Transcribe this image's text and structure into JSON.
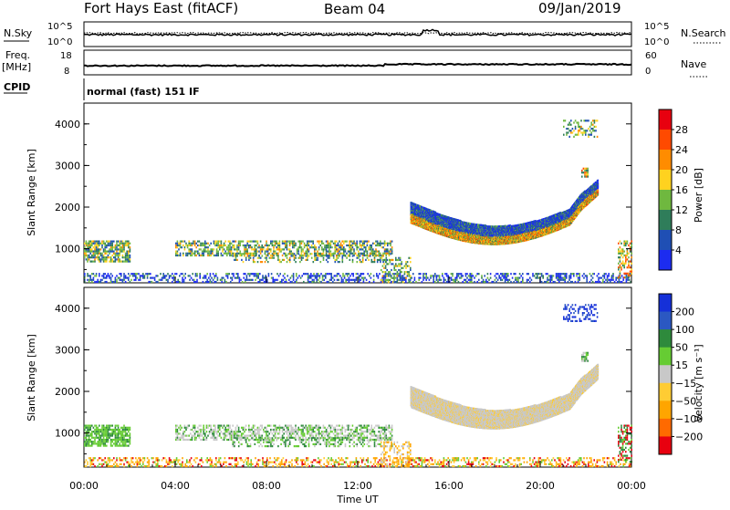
{
  "header": {
    "station": "Fort Hays East (fitACF)",
    "beam": "Beam 04",
    "date": "09/Jan/2019"
  },
  "aux_panels": {
    "nsky_label": "N.Sky",
    "nsky_ticks": [
      "10^5",
      "10^0"
    ],
    "nsearch_label": "N.Search",
    "nsearch_ticks": [
      "10^5",
      "10^0"
    ],
    "freq_label_1": "Freq.",
    "freq_label_2": "[MHz]",
    "freq_ticks": [
      "18",
      "8"
    ],
    "nave_label": "Nave",
    "nave_ticks": [
      "60",
      "0"
    ],
    "cpid_label": "CPID",
    "cpid_text": "normal (fast) 151 IF"
  },
  "chart_data": [
    {
      "type": "heatmap",
      "parameter": "power",
      "ylabel": "Slant Range [km]",
      "yticks": [
        1000,
        2000,
        3000,
        4000
      ],
      "colorbar_label": "Power [dB]",
      "colorbar_ticks": [
        "4",
        "8",
        "12",
        "16",
        "20",
        "24",
        "28"
      ],
      "colors": [
        "#1c2cf0",
        "#1f4fb4",
        "#2f7d5a",
        "#6fb83f",
        "#ffd21f",
        "#ff8c00",
        "#ff4a00",
        "#e8000f"
      ],
      "features": [
        {
          "name": "early-evening-band",
          "t_start_h": 0.0,
          "t_end_h": 2.0,
          "range_min_km": 700,
          "range_max_km": 1200,
          "level": "moderate"
        },
        {
          "name": "mid-band",
          "t_start_h": 4.0,
          "t_end_h": 13.5,
          "range_min_km": 800,
          "range_max_km": 1200,
          "level": "moderate"
        },
        {
          "name": "ground-scatter-low",
          "t_start_h": 0.0,
          "t_end_h": 24.0,
          "range_min_km": 180,
          "range_max_km": 450,
          "level": "low"
        },
        {
          "name": "arc-backscatter",
          "t_start_h": 14.3,
          "t_end_h": 22.5,
          "range_min_km": 1200,
          "range_max_km": 2600,
          "level": "high"
        },
        {
          "name": "far-range-patch",
          "t_start_h": 21.0,
          "t_end_h": 22.5,
          "range_min_km": 3700,
          "range_max_km": 4100,
          "level": "moderate"
        },
        {
          "name": "compact-patch",
          "t_start_h": 21.8,
          "t_end_h": 22.1,
          "range_min_km": 2750,
          "range_max_km": 2950,
          "level": "high"
        }
      ]
    },
    {
      "type": "heatmap",
      "parameter": "velocity",
      "ylabel": "Slant Range [km]",
      "yticks": [
        1000,
        2000,
        3000,
        4000
      ],
      "colorbar_label": "Velocity [m s⁻¹]",
      "colorbar_ticks": [
        "200",
        "100",
        "50",
        "15",
        "−15",
        "−50",
        "−100",
        "−200"
      ],
      "colors": [
        "#1530d8",
        "#2b58c2",
        "#2e8a3c",
        "#66cc33",
        "#c8c8c8",
        "#ffcc33",
        "#ffa500",
        "#ff6a00",
        "#e8000f"
      ],
      "xlabel": "Time UT",
      "xticks": [
        "00:00",
        "04:00",
        "08:00",
        "12:00",
        "16:00",
        "20:00",
        "00:00"
      ]
    }
  ]
}
